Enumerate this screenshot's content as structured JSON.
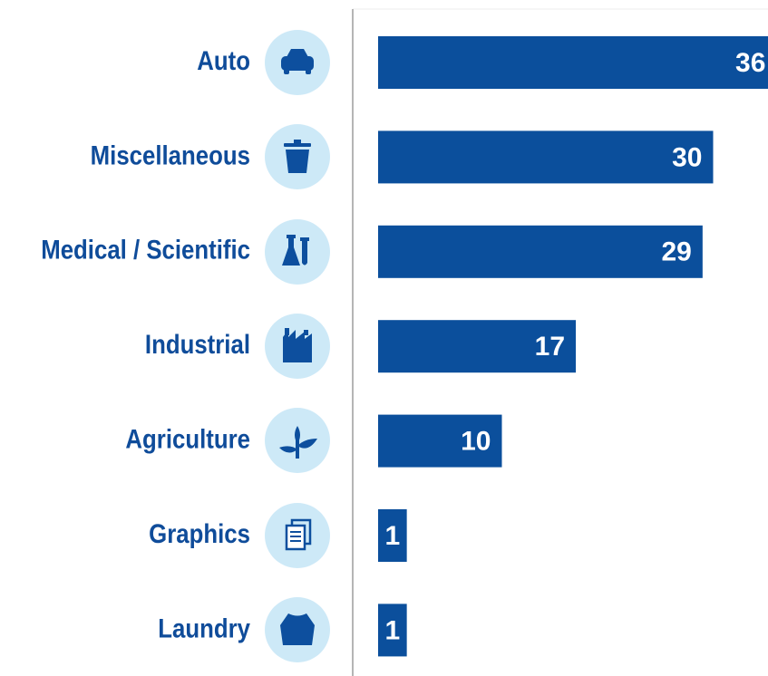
{
  "chart_data": {
    "type": "bar",
    "orientation": "horizontal",
    "categories": [
      "Auto",
      "Miscellaneous",
      "Medical / Scientific",
      "Industrial",
      "Agriculture",
      "Graphics",
      "Laundry"
    ],
    "values": [
      36,
      30,
      29,
      17,
      10,
      1,
      1
    ],
    "color": "#0b4f9c"
  }
}
